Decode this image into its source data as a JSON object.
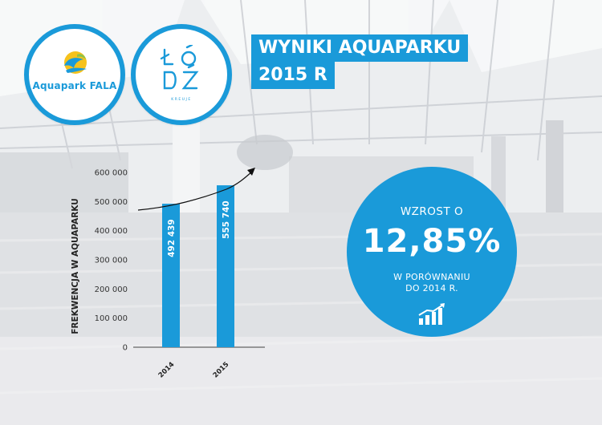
{
  "header": {
    "title_line1": "WYNIKI AQUAPARKU",
    "title_line2": "2015 R"
  },
  "logos": {
    "fala_text": "Aquapark FALA",
    "lodz_glyphs": "ŁÓDŹ",
    "lodz_sub": "KREUJE"
  },
  "highlight": {
    "top_label": "WZROST O",
    "value": "12,85%",
    "sub_line1": "W PORÓWNANIU",
    "sub_line2": "DO 2014 R."
  },
  "colors": {
    "accent": "#1a9ad9",
    "text": "#333333",
    "axis": "#444444"
  },
  "icons": [
    "growth-chart-icon",
    "trend-arrow-icon"
  ],
  "chart_data": {
    "type": "bar",
    "categories": [
      "2014",
      "2015"
    ],
    "values": [
      492439,
      555740
    ],
    "value_labels": [
      "492 439",
      "555 740"
    ],
    "ylabel": "FREKWENCJA W AQUAPARKU",
    "ylim": [
      0,
      600000
    ],
    "yticks": [
      0,
      100000,
      200000,
      300000,
      400000,
      500000,
      600000
    ],
    "ytick_labels": [
      "0",
      "100 000",
      "200 000",
      "300 000",
      "400 000",
      "500 000",
      "600 000"
    ],
    "grid": false,
    "legend": "none"
  }
}
